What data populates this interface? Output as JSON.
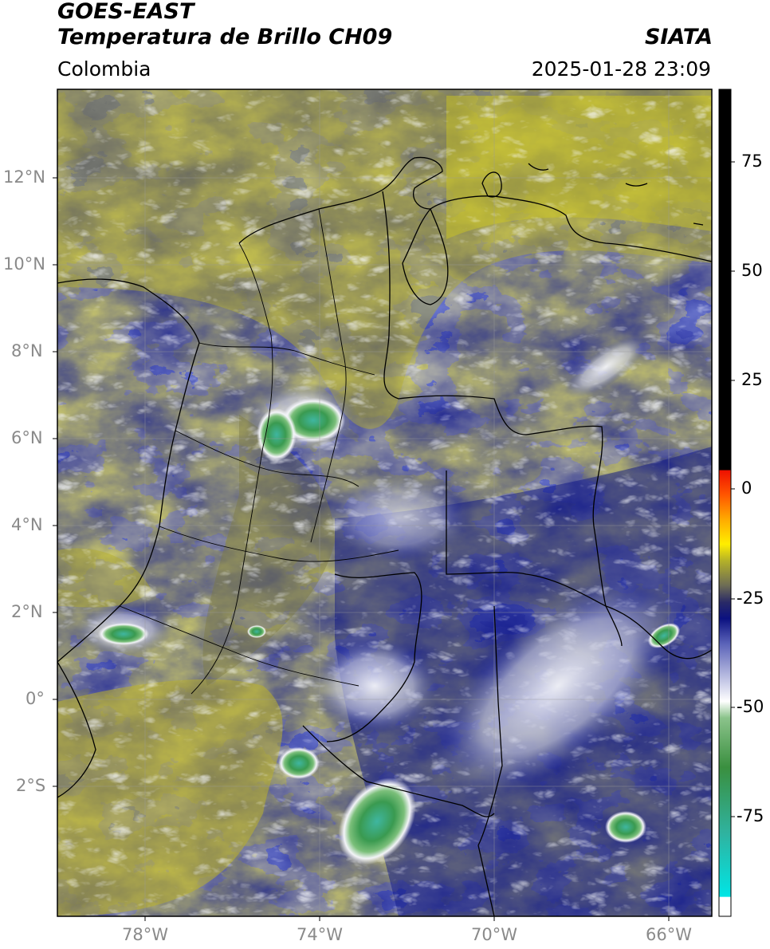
{
  "header": {
    "title_line1": "GOES-EAST",
    "title_line2": "Temperatura de Brillo CH09",
    "source": "SIATA",
    "region": "Colombia",
    "datetime": "2025-01-28 23:09"
  },
  "axes": {
    "lat_ticks": [
      "12°N",
      "10°N",
      "8°N",
      "6°N",
      "4°N",
      "2°N",
      "0°",
      "2°S"
    ],
    "lon_ticks": [
      "78°W",
      "74°W",
      "70°W",
      "66°W"
    ]
  },
  "colorbar": {
    "ticks": [
      "75",
      "50",
      "25",
      "0",
      "-25",
      "-50",
      "-75"
    ]
  },
  "palette": {
    "yellow": "#c9c321",
    "olive": "#8f8c34",
    "gray_olive": "#6e6d52",
    "navy": "#0b1180",
    "blue": "#2a35a0",
    "white": "#f2f3f8",
    "green": "#3c9e4e",
    "teal": "#35b8a0"
  }
}
